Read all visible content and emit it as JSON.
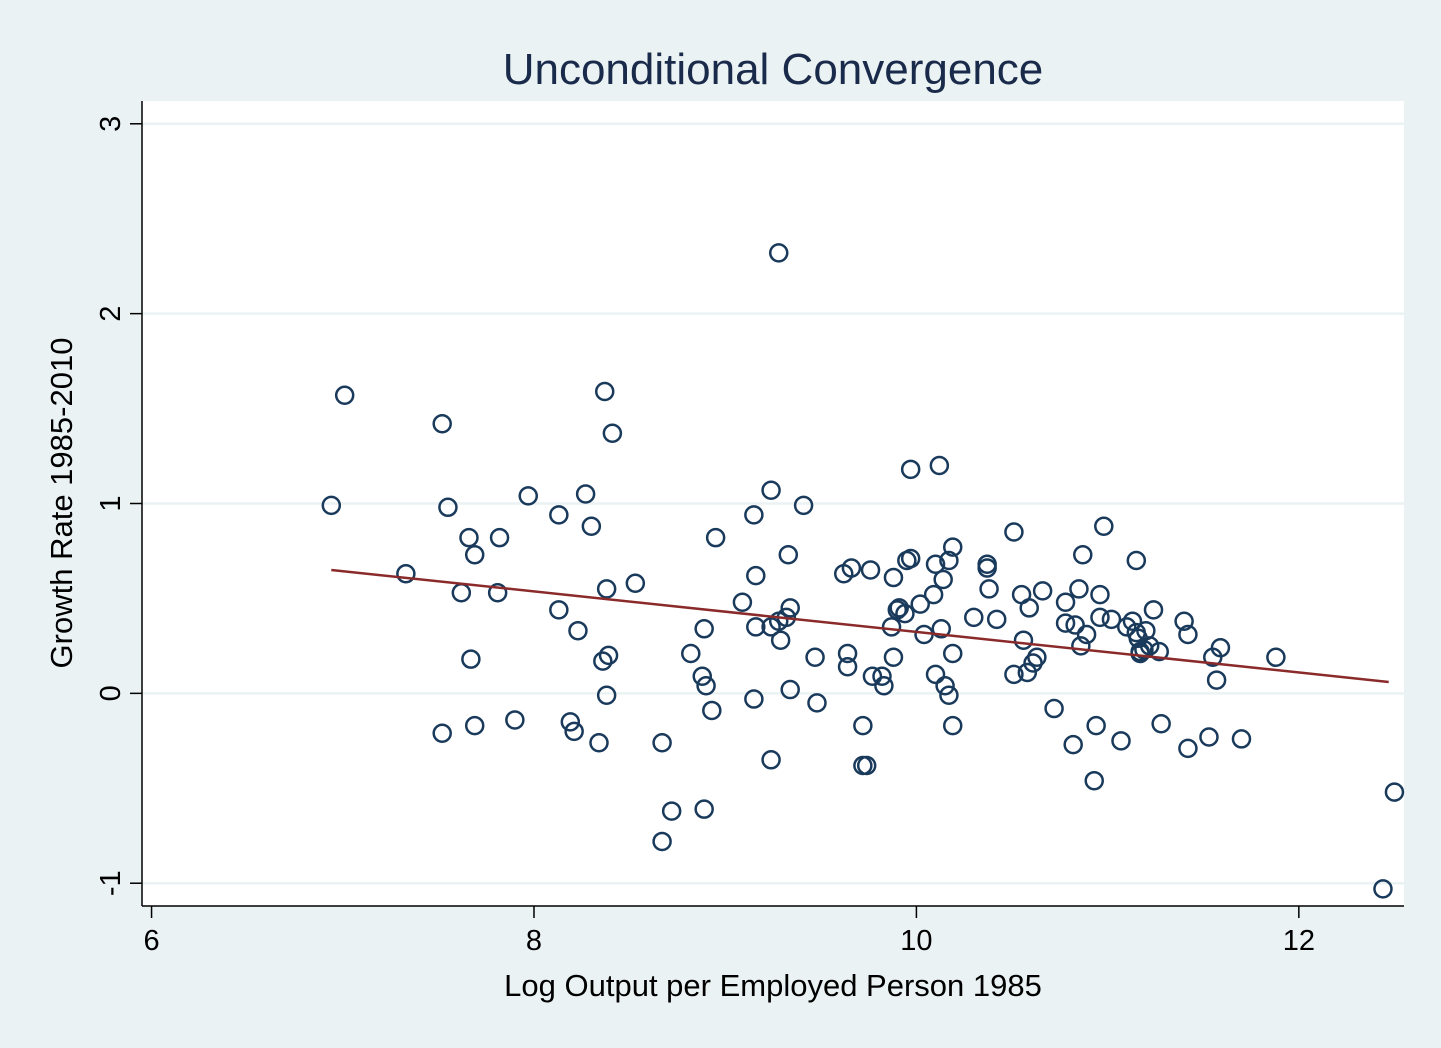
{
  "chart_data": {
    "type": "scatter",
    "title": "Unconditional Convergence",
    "xlabel": "Log Output per Employed Person 1985",
    "ylabel": "Growth Rate 1985-2010",
    "xlim": [
      5.95,
      12.55
    ],
    "ylim": [
      -1.12,
      3.12
    ],
    "xticks": [
      6,
      8,
      10,
      12
    ],
    "yticks": [
      -1,
      0,
      1,
      2,
      3
    ],
    "grid": "horizontal",
    "legend": "none",
    "colors": {
      "background": "#eaf2f3",
      "plot_area": "#ffffff",
      "markers": "#1a3a5c",
      "fit_line": "#8b2a2a",
      "gridlines": "#eaf2f3"
    },
    "series": [
      {
        "type": "scatter",
        "points": [
          [
            6.94,
            0.99
          ],
          [
            7.01,
            1.57
          ],
          [
            7.33,
            0.63
          ],
          [
            7.52,
            1.42
          ],
          [
            7.55,
            0.98
          ],
          [
            7.52,
            -0.21
          ],
          [
            7.62,
            0.53
          ],
          [
            7.66,
            0.82
          ],
          [
            7.69,
            0.73
          ],
          [
            7.67,
            0.18
          ],
          [
            7.69,
            -0.17
          ],
          [
            7.82,
            0.82
          ],
          [
            7.81,
            0.53
          ],
          [
            7.9,
            -0.14
          ],
          [
            7.97,
            1.04
          ],
          [
            8.13,
            0.94
          ],
          [
            8.13,
            0.44
          ],
          [
            8.19,
            -0.15
          ],
          [
            8.21,
            -0.2
          ],
          [
            8.23,
            0.33
          ],
          [
            8.27,
            1.05
          ],
          [
            8.3,
            0.88
          ],
          [
            8.34,
            -0.26
          ],
          [
            8.37,
            1.59
          ],
          [
            8.36,
            0.17
          ],
          [
            8.39,
            0.2
          ],
          [
            8.38,
            0.55
          ],
          [
            8.41,
            1.37
          ],
          [
            8.38,
            -0.01
          ],
          [
            8.53,
            0.58
          ],
          [
            8.67,
            -0.26
          ],
          [
            8.67,
            -0.78
          ],
          [
            8.72,
            -0.62
          ],
          [
            8.82,
            0.21
          ],
          [
            8.89,
            0.34
          ],
          [
            8.88,
            0.09
          ],
          [
            8.9,
            0.04
          ],
          [
            8.89,
            -0.61
          ],
          [
            8.93,
            -0.09
          ],
          [
            8.95,
            0.82
          ],
          [
            9.09,
            0.48
          ],
          [
            9.15,
            0.94
          ],
          [
            9.16,
            0.62
          ],
          [
            9.16,
            0.35
          ],
          [
            9.15,
            -0.03
          ],
          [
            9.24,
            1.07
          ],
          [
            9.24,
            0.35
          ],
          [
            9.28,
            2.32
          ],
          [
            9.28,
            0.38
          ],
          [
            9.29,
            0.28
          ],
          [
            9.32,
            0.4
          ],
          [
            9.33,
            0.73
          ],
          [
            9.34,
            0.45
          ],
          [
            9.34,
            0.02
          ],
          [
            9.24,
            -0.35
          ],
          [
            9.41,
            0.99
          ],
          [
            9.47,
            0.19
          ],
          [
            9.48,
            -0.05
          ],
          [
            9.62,
            0.63
          ],
          [
            9.66,
            0.66
          ],
          [
            9.64,
            0.21
          ],
          [
            9.64,
            0.14
          ],
          [
            9.72,
            -0.17
          ],
          [
            9.76,
            0.65
          ],
          [
            9.77,
            0.09
          ],
          [
            9.72,
            -0.38
          ],
          [
            9.74,
            -0.38
          ],
          [
            9.82,
            0.09
          ],
          [
            9.83,
            0.04
          ],
          [
            9.88,
            0.61
          ],
          [
            9.87,
            0.35
          ],
          [
            9.88,
            0.19
          ],
          [
            9.9,
            0.44
          ],
          [
            9.91,
            0.45
          ],
          [
            9.94,
            0.42
          ],
          [
            9.95,
            0.7
          ],
          [
            9.97,
            0.71
          ],
          [
            9.97,
            1.18
          ],
          [
            10.02,
            0.47
          ],
          [
            10.04,
            0.31
          ],
          [
            10.09,
            0.52
          ],
          [
            10.1,
            0.68
          ],
          [
            10.12,
            1.2
          ],
          [
            10.13,
            0.34
          ],
          [
            10.1,
            0.1
          ],
          [
            10.14,
            0.6
          ],
          [
            10.15,
            0.04
          ],
          [
            10.17,
            -0.01
          ],
          [
            10.17,
            0.7
          ],
          [
            10.19,
            0.77
          ],
          [
            10.19,
            0.21
          ],
          [
            10.19,
            -0.17
          ],
          [
            10.3,
            0.4
          ],
          [
            10.37,
            0.66
          ],
          [
            10.37,
            0.68
          ],
          [
            10.38,
            0.55
          ],
          [
            10.42,
            0.39
          ],
          [
            10.51,
            0.85
          ],
          [
            10.51,
            0.1
          ],
          [
            10.55,
            0.52
          ],
          [
            10.56,
            0.28
          ],
          [
            10.59,
            0.45
          ],
          [
            10.58,
            0.11
          ],
          [
            10.61,
            0.16
          ],
          [
            10.63,
            0.19
          ],
          [
            10.66,
            0.54
          ],
          [
            10.72,
            -0.08
          ],
          [
            10.78,
            0.48
          ],
          [
            10.78,
            0.37
          ],
          [
            10.82,
            -0.27
          ],
          [
            10.83,
            0.36
          ],
          [
            10.85,
            0.55
          ],
          [
            10.86,
            0.25
          ],
          [
            10.87,
            0.73
          ],
          [
            10.89,
            0.31
          ],
          [
            10.93,
            -0.46
          ],
          [
            10.94,
            -0.17
          ],
          [
            10.96,
            0.52
          ],
          [
            10.96,
            0.4
          ],
          [
            10.98,
            0.88
          ],
          [
            11.02,
            0.39
          ],
          [
            11.07,
            -0.25
          ],
          [
            11.1,
            0.35
          ],
          [
            11.13,
            0.38
          ],
          [
            11.15,
            0.7
          ],
          [
            11.15,
            0.32
          ],
          [
            11.16,
            0.29
          ],
          [
            11.17,
            0.22
          ],
          [
            11.17,
            0.21
          ],
          [
            11.19,
            0.23
          ],
          [
            11.2,
            0.33
          ],
          [
            11.22,
            0.25
          ],
          [
            11.24,
            0.44
          ],
          [
            11.27,
            0.22
          ],
          [
            11.28,
            -0.16
          ],
          [
            11.4,
            0.38
          ],
          [
            11.42,
            0.31
          ],
          [
            11.42,
            -0.29
          ],
          [
            11.53,
            -0.23
          ],
          [
            11.55,
            0.19
          ],
          [
            11.57,
            0.07
          ],
          [
            11.59,
            0.24
          ],
          [
            11.7,
            -0.24
          ],
          [
            11.88,
            0.19
          ],
          [
            12.44,
            -1.03
          ],
          [
            12.5,
            -0.52
          ]
        ]
      },
      {
        "type": "line",
        "points": [
          [
            6.94,
            0.65
          ],
          [
            12.47,
            0.06
          ]
        ]
      }
    ]
  }
}
